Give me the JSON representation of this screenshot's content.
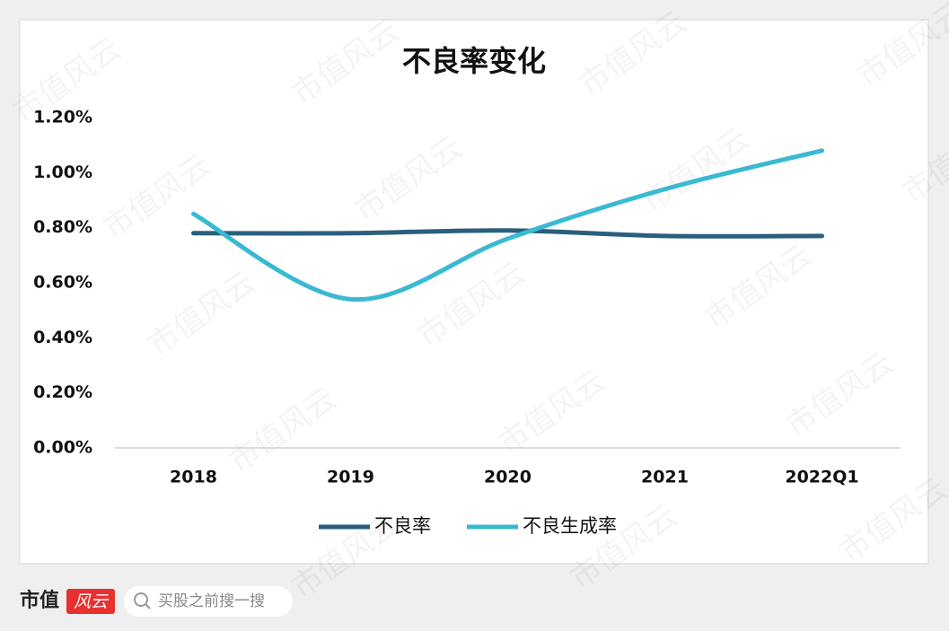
{
  "chart_data": {
    "type": "line",
    "title": "不良率变化",
    "categories": [
      "2018",
      "2019",
      "2020",
      "2021",
      "2022Q1"
    ],
    "series": [
      {
        "name": "不良率",
        "color": "#2a5f7e",
        "values": [
          0.78,
          0.78,
          0.79,
          0.77,
          0.77
        ]
      },
      {
        "name": "不良生成率",
        "color": "#3ab9d2",
        "values": [
          0.85,
          0.54,
          0.76,
          0.94,
          1.08
        ]
      }
    ],
    "ylim": [
      0,
      1.2
    ],
    "yticks": [
      {
        "value": 0,
        "label": "0.00%"
      },
      {
        "value": 0.2,
        "label": "0.20%"
      },
      {
        "value": 0.4,
        "label": "0.40%"
      },
      {
        "value": 0.6,
        "label": "0.60%"
      },
      {
        "value": 0.8,
        "label": "0.80%"
      },
      {
        "value": 1.0,
        "label": "1.00%"
      },
      {
        "value": 1.2,
        "label": "1.20%"
      }
    ],
    "grid": false,
    "smooth": true,
    "legend": "bottom"
  },
  "footer": {
    "brand": "市值",
    "badge": "风云",
    "search": "买股之前搜一搜"
  },
  "watermark": "市值风云"
}
